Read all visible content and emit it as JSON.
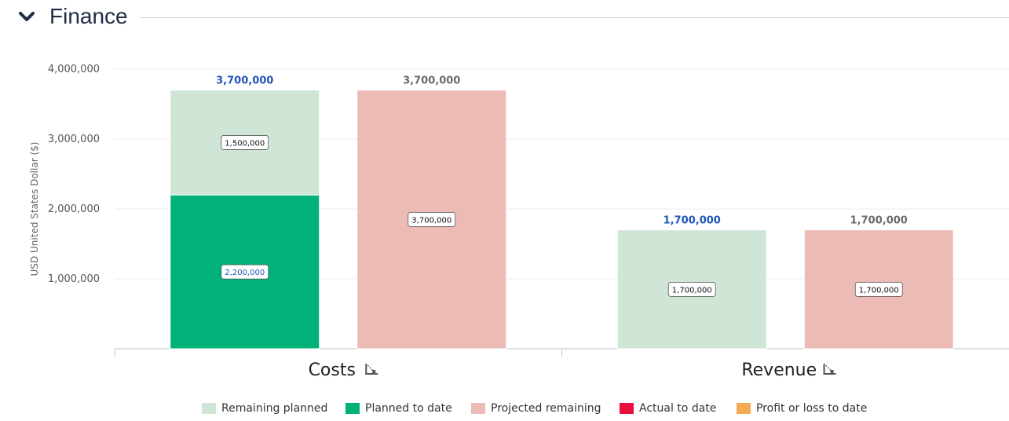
{
  "section": {
    "title": "Finance",
    "toggle_icon": "chevron-down-icon"
  },
  "colors": {
    "remaining_planned": "#cfe6d6",
    "planned_to_date": "#00b27a",
    "projected_remaining": "#ecbbb5",
    "actual_to_date": "#e8103d",
    "profit_or_loss": "#f4aa51",
    "total_label_planned": "#1f56b8",
    "total_label_projected": "#6b6b6b"
  },
  "chart_data": {
    "type": "bar",
    "stacked": true,
    "categories": [
      "Costs",
      "Revenue"
    ],
    "category_icon": "drilldown-icon",
    "ylabel": "USD United States Dollar ($)",
    "ylim": [
      0,
      4000000
    ],
    "yticks": [
      "1,000,000",
      "2,000,000",
      "3,000,000",
      "4,000,000"
    ],
    "grid": true,
    "legend_position": "bottom",
    "legend": [
      "Remaining planned",
      "Planned to date",
      "Projected remaining",
      "Actual to date",
      "Profit or loss to date"
    ],
    "groups": [
      {
        "category": "Costs",
        "stacks": [
          {
            "total_label": "3,700,000",
            "total_color_key": "total_label_planned",
            "segments": [
              {
                "series": "Planned to date",
                "value": 2200000,
                "label": "2,200,000",
                "color_key": "planned_to_date",
                "label_color_key": "total_label_planned"
              },
              {
                "series": "Remaining planned",
                "value": 1500000,
                "label": "1,500,000",
                "color_key": "remaining_planned",
                "label_color_key": ""
              }
            ]
          },
          {
            "total_label": "3,700,000",
            "total_color_key": "total_label_projected",
            "segments": [
              {
                "series": "Projected remaining",
                "value": 3700000,
                "label": "3,700,000",
                "color_key": "projected_remaining",
                "label_color_key": ""
              }
            ]
          }
        ]
      },
      {
        "category": "Revenue",
        "stacks": [
          {
            "total_label": "1,700,000",
            "total_color_key": "total_label_planned",
            "segments": [
              {
                "series": "Remaining planned",
                "value": 1700000,
                "label": "1,700,000",
                "color_key": "remaining_planned",
                "label_color_key": ""
              }
            ]
          },
          {
            "total_label": "1,700,000",
            "total_color_key": "total_label_projected",
            "segments": [
              {
                "series": "Projected remaining",
                "value": 1700000,
                "label": "1,700,000",
                "color_key": "projected_remaining",
                "label_color_key": ""
              }
            ]
          }
        ]
      }
    ]
  },
  "legend_items": [
    {
      "label": "Remaining planned",
      "color_key": "remaining_planned"
    },
    {
      "label": "Planned to date",
      "color_key": "planned_to_date"
    },
    {
      "label": "Projected remaining",
      "color_key": "projected_remaining"
    },
    {
      "label": "Actual to date",
      "color_key": "actual_to_date"
    },
    {
      "label": "Profit or loss to date",
      "color_key": "profit_or_loss"
    }
  ]
}
